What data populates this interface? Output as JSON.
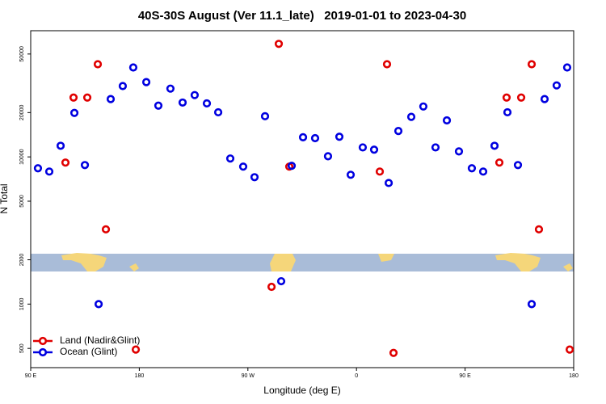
{
  "chart_data": {
    "type": "scatter",
    "title": "40S-30S August (Ver 11.1_late)   2019-01-01 to 2023-04-30",
    "x_label": "Longitude (deg E)",
    "y_label": "N Total",
    "log_y": true,
    "legend": "bottom-left",
    "xlim": [
      90,
      540
    ],
    "ylim": [
      370,
      72000
    ],
    "xticks": [
      {
        "value": 90,
        "label": "90 E"
      },
      {
        "value": 180,
        "label": "180"
      },
      {
        "value": 270,
        "label": "90 W"
      },
      {
        "value": 360,
        "label": "0"
      },
      {
        "value": 450,
        "label": "90 E"
      },
      {
        "value": 540,
        "label": "180"
      }
    ],
    "yticks": [
      500,
      1000,
      2000,
      5000,
      10000,
      20000,
      50000
    ],
    "series": [
      {
        "name": "Land (Nadir&Glint)",
        "color": "#e00000",
        "x": [
          118.8,
          125.5,
          136.9,
          145.6,
          152.3,
          177.1,
          289.6,
          295.6,
          304.3,
          379.3,
          385.3,
          390.7,
          478.4,
          484.4,
          496.5,
          505.2,
          511.2,
          536.7
        ],
        "values": [
          9150,
          25300,
          25300,
          42600,
          3220,
          491,
          1310,
          58600,
          8590,
          7950,
          42600,
          466,
          9150,
          25300,
          25300,
          42600,
          3220,
          491
        ]
      },
      {
        "name": "Ocean (Glint)",
        "color": "#0000e0",
        "x": [
          96,
          105.4,
          114.8,
          126.2,
          134.9,
          146.3,
          156.3,
          166.3,
          175,
          185.8,
          195.8,
          205.8,
          215.9,
          225.9,
          236,
          245.4,
          255.4,
          266.1,
          275.5,
          284.2,
          297.6,
          306.3,
          315.7,
          325.7,
          336.4,
          345.8,
          355.2,
          365.2,
          374.6,
          386.7,
          394.7,
          405.4,
          415.4,
          425.5,
          434.9,
          444.9,
          455.6,
          465,
          474.4,
          485.1,
          493.8,
          505.2,
          515.9,
          525.9,
          534.6
        ],
        "values": [
          8370,
          7950,
          11900,
          19900,
          8800,
          1000,
          24700,
          30300,
          40500,
          32200,
          22300,
          29100,
          23400,
          26300,
          23100,
          20100,
          9750,
          8590,
          7280,
          18900,
          1430,
          8700,
          13600,
          13400,
          10100,
          13700,
          7560,
          11600,
          11200,
          6650,
          15000,
          18700,
          22000,
          11600,
          17700,
          10900,
          8370,
          7950,
          11900,
          20100,
          8800,
          1000,
          24700,
          30600,
          40500
        ]
      }
    ]
  }
}
